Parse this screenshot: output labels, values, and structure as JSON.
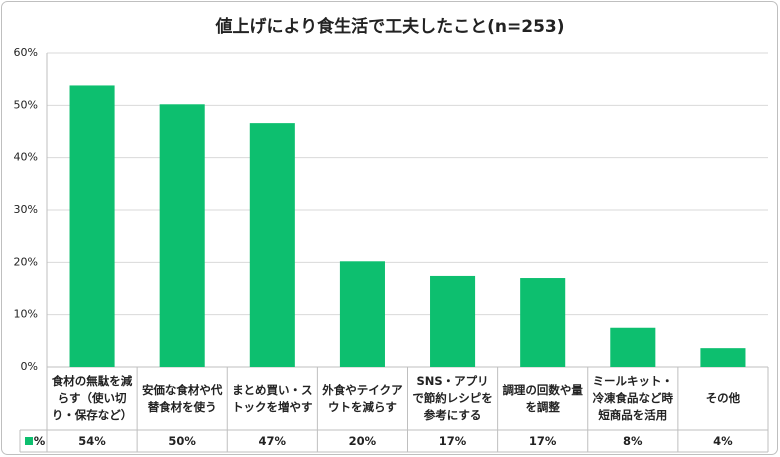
{
  "chart_data": {
    "type": "bar",
    "title": "値上げにより食生活で工夫したこと(n=253)",
    "categories": [
      "食材の無駄を減らす（使い切り・保存など）",
      "安価な食材や代替食材を使う",
      "まとめ買い・ストックを増やす",
      "外食やテイクアウトを減らす",
      "SNS・アプリで節約レシピを参考にする",
      "調理の回数や量を調整",
      "ミールキット・冷凍食品など時短商品を活用",
      "その他"
    ],
    "series": [
      {
        "name": "%",
        "color": "#0dbf6f",
        "values": [
          53.8,
          50.2,
          46.6,
          20.2,
          17.4,
          17.0,
          7.5,
          3.6
        ],
        "value_labels": [
          "54%",
          "50%",
          "47%",
          "20%",
          "17%",
          "17%",
          "8%",
          "4%"
        ]
      }
    ],
    "ylim": [
      0,
      60
    ],
    "yticks": [
      {
        "value": 0,
        "label": "0%"
      },
      {
        "value": 10,
        "label": "10%"
      },
      {
        "value": 20,
        "label": "20%"
      },
      {
        "value": 30,
        "label": "30%"
      },
      {
        "value": 40,
        "label": "40%"
      },
      {
        "value": 50,
        "label": "50%"
      },
      {
        "value": 60,
        "label": "60%"
      }
    ],
    "grid": true
  }
}
